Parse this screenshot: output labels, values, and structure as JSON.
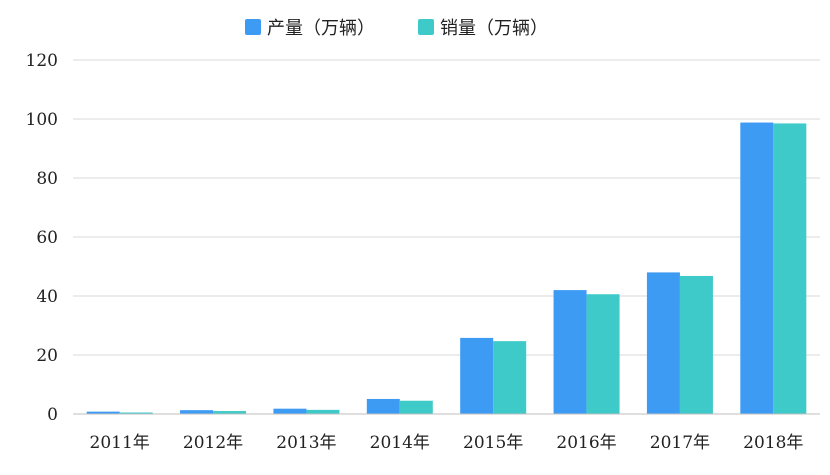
{
  "chart_data": {
    "type": "bar",
    "categories": [
      "2011年",
      "2012年",
      "2013年",
      "2014年",
      "2015年",
      "2016年",
      "2017年",
      "2018年"
    ],
    "series": [
      {
        "name": "产量（万辆）",
        "color": "#3e9bf4",
        "values": [
          0.8,
          1.3,
          1.8,
          5.1,
          25.8,
          42.0,
          48.0,
          98.8
        ]
      },
      {
        "name": "销量（万辆）",
        "color": "#3ecac9",
        "values": [
          0.5,
          1.0,
          1.4,
          4.5,
          24.7,
          40.6,
          46.8,
          98.5
        ]
      }
    ],
    "ylim": [
      0,
      120
    ],
    "yticks": [
      "0",
      "20",
      "40",
      "60",
      "80",
      "100",
      "120"
    ],
    "grid": true,
    "legend": "top-center"
  }
}
